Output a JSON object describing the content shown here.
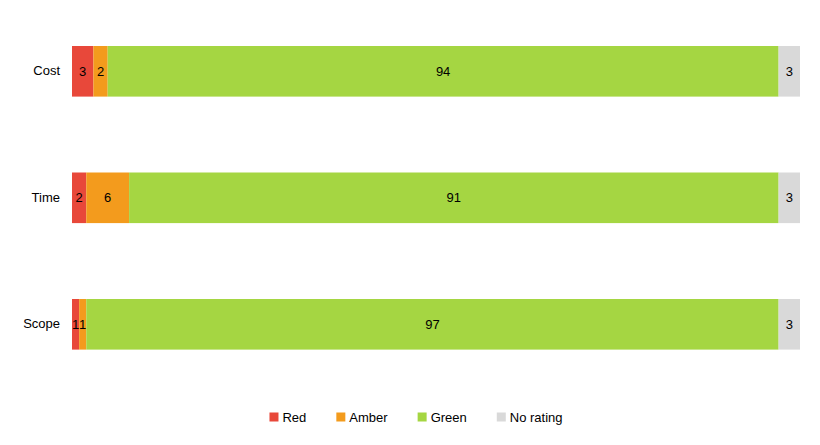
{
  "chart_data": {
    "type": "bar",
    "orientation": "horizontal",
    "stacked": true,
    "data_labels": true,
    "tick_labels": "y",
    "legend": "bottom",
    "categories": [
      "Cost",
      "Time",
      "Scope"
    ],
    "xlim": [
      0,
      102
    ],
    "series": [
      {
        "name": "Red",
        "color": "#e8483a",
        "values": [
          3,
          2,
          1
        ]
      },
      {
        "name": "Amber",
        "color": "#f39b1d",
        "values": [
          2,
          6,
          1
        ]
      },
      {
        "name": "Green",
        "color": "#a5d642",
        "values": [
          94,
          91,
          97
        ]
      },
      {
        "name": "No rating",
        "color": "#d9d9d9",
        "values": [
          3,
          3,
          3
        ]
      }
    ]
  }
}
